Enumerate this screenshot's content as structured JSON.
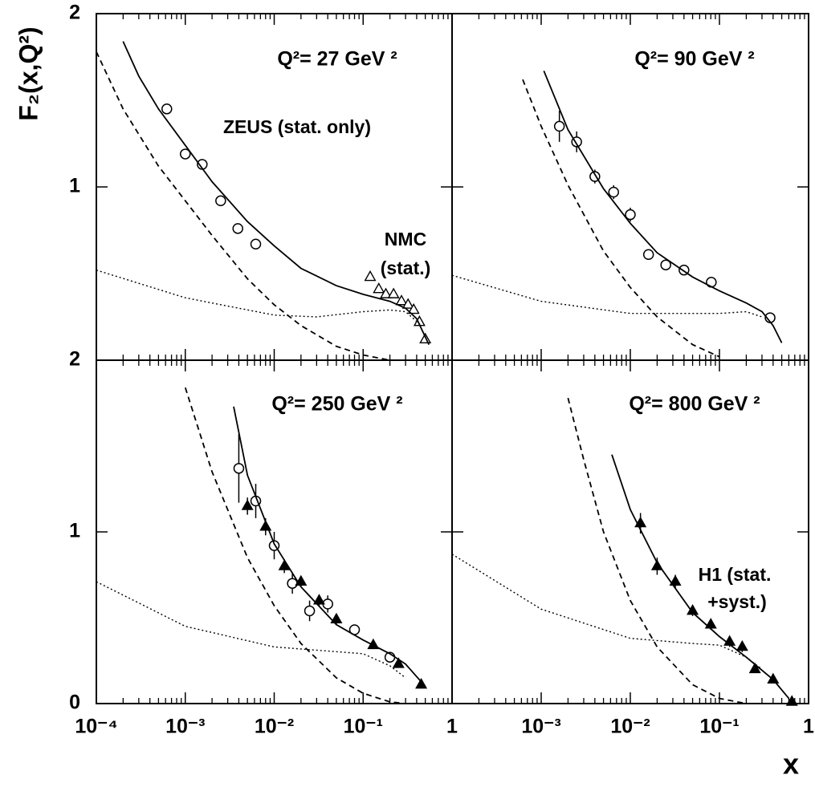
{
  "chart_data": [
    {
      "type": "scatter",
      "ylabel": "F₂(x,Q²)",
      "xlog": true,
      "xlim": [
        0.0001,
        1
      ],
      "ylim": [
        0,
        2
      ],
      "xticks": [
        0.0001,
        0.001,
        0.01,
        0.1,
        1
      ],
      "xtick_labels": false,
      "yticks": [
        1,
        2
      ],
      "ytick_labels": true,
      "annotations": [
        "Q²= 27 GeV ²",
        "ZEUS (stat. only)",
        "NMC",
        "(stat.)"
      ],
      "series": [
        {
          "style": "circle",
          "color": "#000000",
          "x": [
            0.00062,
            0.001,
            0.00155,
            0.0025,
            0.0039,
            0.0062
          ],
          "values": [
            1.45,
            1.19,
            1.13,
            0.92,
            0.76,
            0.67
          ],
          "errors": [
            0.03,
            0.025,
            0.025,
            0.02,
            0.02,
            0.02
          ]
        },
        {
          "style": "triangle",
          "color": "#000000",
          "x": [
            0.12,
            0.15,
            0.18,
            0.22,
            0.27,
            0.32,
            0.37,
            0.43,
            0.5
          ],
          "values": [
            0.48,
            0.41,
            0.38,
            0.38,
            0.34,
            0.32,
            0.29,
            0.22,
            0.12
          ]
        },
        {
          "style": "solid",
          "color": "#000000",
          "x": [
            0.0002,
            0.0003,
            0.0005,
            0.001,
            0.002,
            0.005,
            0.01,
            0.02,
            0.05,
            0.1,
            0.2,
            0.3,
            0.4,
            0.55
          ],
          "values": [
            1.84,
            1.64,
            1.45,
            1.24,
            1.03,
            0.8,
            0.66,
            0.53,
            0.43,
            0.38,
            0.34,
            0.3,
            0.24,
            0.09
          ]
        },
        {
          "style": "dashed",
          "color": "#000000",
          "x": [
            0.0001,
            0.0002,
            0.0005,
            0.001,
            0.002,
            0.005,
            0.01,
            0.02,
            0.05,
            0.1,
            0.2
          ],
          "values": [
            1.78,
            1.45,
            1.12,
            0.92,
            0.72,
            0.47,
            0.32,
            0.2,
            0.08,
            0.03,
            0
          ]
        },
        {
          "style": "dotted",
          "color": "#000000",
          "x": [
            0.0001,
            0.001,
            0.01,
            0.03,
            0.1,
            0.2,
            0.3,
            0.45
          ],
          "values": [
            0.52,
            0.36,
            0.26,
            0.25,
            0.28,
            0.29,
            0.28,
            0.2
          ]
        }
      ]
    },
    {
      "type": "scatter",
      "xlog": true,
      "xlim": [
        0.0001,
        1
      ],
      "ylim": [
        0,
        2
      ],
      "xticks": [
        0.0001,
        0.001,
        0.01,
        0.1,
        1
      ],
      "xtick_labels": false,
      "yticks": [
        0,
        1,
        2
      ],
      "ytick_labels": false,
      "annotations": [
        "Q²= 90 GeV ²"
      ],
      "series": [
        {
          "style": "circle",
          "color": "#000000",
          "x": [
            0.0016,
            0.0025,
            0.004,
            0.0065,
            0.01,
            0.016,
            0.025,
            0.04,
            0.081,
            0.37
          ],
          "values": [
            1.35,
            1.26,
            1.06,
            0.97,
            0.84,
            0.61,
            0.55,
            0.52,
            0.45,
            0.245
          ],
          "errors": [
            0.09,
            0.06,
            0.04,
            0.04,
            0.04,
            0.03,
            0.02,
            0.02,
            0.02,
            0.02
          ]
        },
        {
          "style": "solid",
          "color": "#000000",
          "x": [
            0.00107,
            0.002,
            0.005,
            0.01,
            0.02,
            0.05,
            0.1,
            0.2,
            0.3,
            0.4,
            0.5
          ],
          "values": [
            1.67,
            1.33,
            0.99,
            0.79,
            0.62,
            0.48,
            0.4,
            0.33,
            0.28,
            0.2,
            0.1
          ]
        },
        {
          "style": "dashed",
          "color": "#000000",
          "x": [
            0.00062,
            0.001,
            0.002,
            0.005,
            0.01,
            0.02,
            0.05,
            0.1
          ],
          "values": [
            1.62,
            1.35,
            1.01,
            0.63,
            0.42,
            0.25,
            0.09,
            0.02
          ]
        },
        {
          "style": "dotted",
          "color": "#000000",
          "x": [
            0.0001,
            0.001,
            0.01,
            0.1,
            0.2,
            0.3
          ],
          "values": [
            0.49,
            0.34,
            0.27,
            0.27,
            0.28,
            0.25
          ]
        }
      ]
    },
    {
      "type": "scatter",
      "xlog": true,
      "xlim": [
        0.0001,
        1
      ],
      "ylim": [
        0,
        2
      ],
      "xticks": [
        {
          "value": 0.0001,
          "label": "10⁻⁴"
        },
        {
          "value": 0.001,
          "label": "10⁻³"
        },
        {
          "value": 0.01,
          "label": "10⁻²"
        },
        {
          "value": 0.1,
          "label": "10⁻¹"
        },
        1
      ],
      "xtick_labels": true,
      "yticks": [
        0,
        1,
        2
      ],
      "ytick_labels": true,
      "annotations": [
        "Q²= 250 GeV ²"
      ],
      "series": [
        {
          "style": "circle",
          "color": "#000000",
          "x": [
            0.004,
            0.0062,
            0.01,
            0.016,
            0.025,
            0.04,
            0.08,
            0.2
          ],
          "values": [
            1.37,
            1.18,
            0.92,
            0.7,
            0.54,
            0.58,
            0.43,
            0.27
          ],
          "errors": [
            0.2,
            0.1,
            0.08,
            0.06,
            0.06,
            0.05,
            0.03,
            0.02
          ]
        },
        {
          "style": "filled-triangle",
          "color": "#000000",
          "x": [
            0.005,
            0.008,
            0.013,
            0.02,
            0.032,
            0.05,
            0.13,
            0.25,
            0.45
          ],
          "values": [
            1.15,
            1.03,
            0.8,
            0.71,
            0.6,
            0.49,
            0.34,
            0.23,
            0.11
          ],
          "errors": [
            0.05,
            0.05,
            0.04,
            0.03,
            0.03,
            0.03,
            0.02,
            0.02,
            0.01
          ]
        },
        {
          "style": "solid",
          "color": "#000000",
          "x": [
            0.0035,
            0.005,
            0.01,
            0.02,
            0.05,
            0.1,
            0.2,
            0.3,
            0.5
          ],
          "values": [
            1.73,
            1.33,
            0.93,
            0.68,
            0.46,
            0.37,
            0.29,
            0.23,
            0.1
          ]
        },
        {
          "style": "dashed",
          "color": "#000000",
          "x": [
            0.001,
            0.002,
            0.005,
            0.01,
            0.02,
            0.05,
            0.1,
            0.2,
            0.3
          ],
          "values": [
            1.84,
            1.35,
            0.85,
            0.57,
            0.35,
            0.15,
            0.06,
            0.01,
            0
          ]
        },
        {
          "style": "dotted",
          "color": "#000000",
          "x": [
            0.0001,
            0.001,
            0.01,
            0.1,
            0.2,
            0.3
          ],
          "values": [
            0.71,
            0.45,
            0.33,
            0.29,
            0.22,
            0.15
          ]
        }
      ]
    },
    {
      "type": "scatter",
      "xlabel": "x",
      "xlog": true,
      "xlim": [
        0.0001,
        1
      ],
      "ylim": [
        0,
        2
      ],
      "xticks": [
        {
          "value": 0.001,
          "label": "10⁻³"
        },
        {
          "value": 0.01,
          "label": "10⁻²"
        },
        {
          "value": 0.1,
          "label": "10⁻¹"
        },
        1
      ],
      "xtick_labels": true,
      "yticks": [
        0,
        1,
        2
      ],
      "ytick_labels": false,
      "annotations": [
        "Q²= 800 GeV ²",
        "H1 (stat.",
        "+syst.)"
      ],
      "series": [
        {
          "style": "filled-triangle",
          "color": "#000000",
          "x": [
            0.013,
            0.02,
            0.032,
            0.05,
            0.08,
            0.13,
            0.18,
            0.25,
            0.4,
            0.65
          ],
          "values": [
            1.05,
            0.8,
            0.71,
            0.54,
            0.46,
            0.36,
            0.33,
            0.2,
            0.14,
            0.01
          ],
          "errors": [
            0.06,
            0.05,
            0.04,
            0.03,
            0.03,
            0.03,
            0.03,
            0.02,
            0.02,
            0.01
          ]
        },
        {
          "style": "solid",
          "color": "#000000",
          "x": [
            0.0062,
            0.01,
            0.02,
            0.05,
            0.1,
            0.2,
            0.4,
            0.6
          ],
          "values": [
            1.45,
            1.13,
            0.82,
            0.53,
            0.39,
            0.27,
            0.14,
            0.03
          ]
        },
        {
          "style": "dashed",
          "color": "#000000",
          "x": [
            0.002,
            0.003,
            0.005,
            0.01,
            0.02,
            0.05,
            0.1,
            0.2
          ],
          "values": [
            1.78,
            1.42,
            1.0,
            0.6,
            0.33,
            0.11,
            0.03,
            0
          ]
        },
        {
          "style": "dotted",
          "color": "#000000",
          "x": [
            0.0001,
            0.001,
            0.01,
            0.05,
            0.1,
            0.2,
            0.3
          ],
          "values": [
            0.87,
            0.55,
            0.38,
            0.35,
            0.34,
            0.27,
            0.2
          ]
        }
      ]
    }
  ]
}
